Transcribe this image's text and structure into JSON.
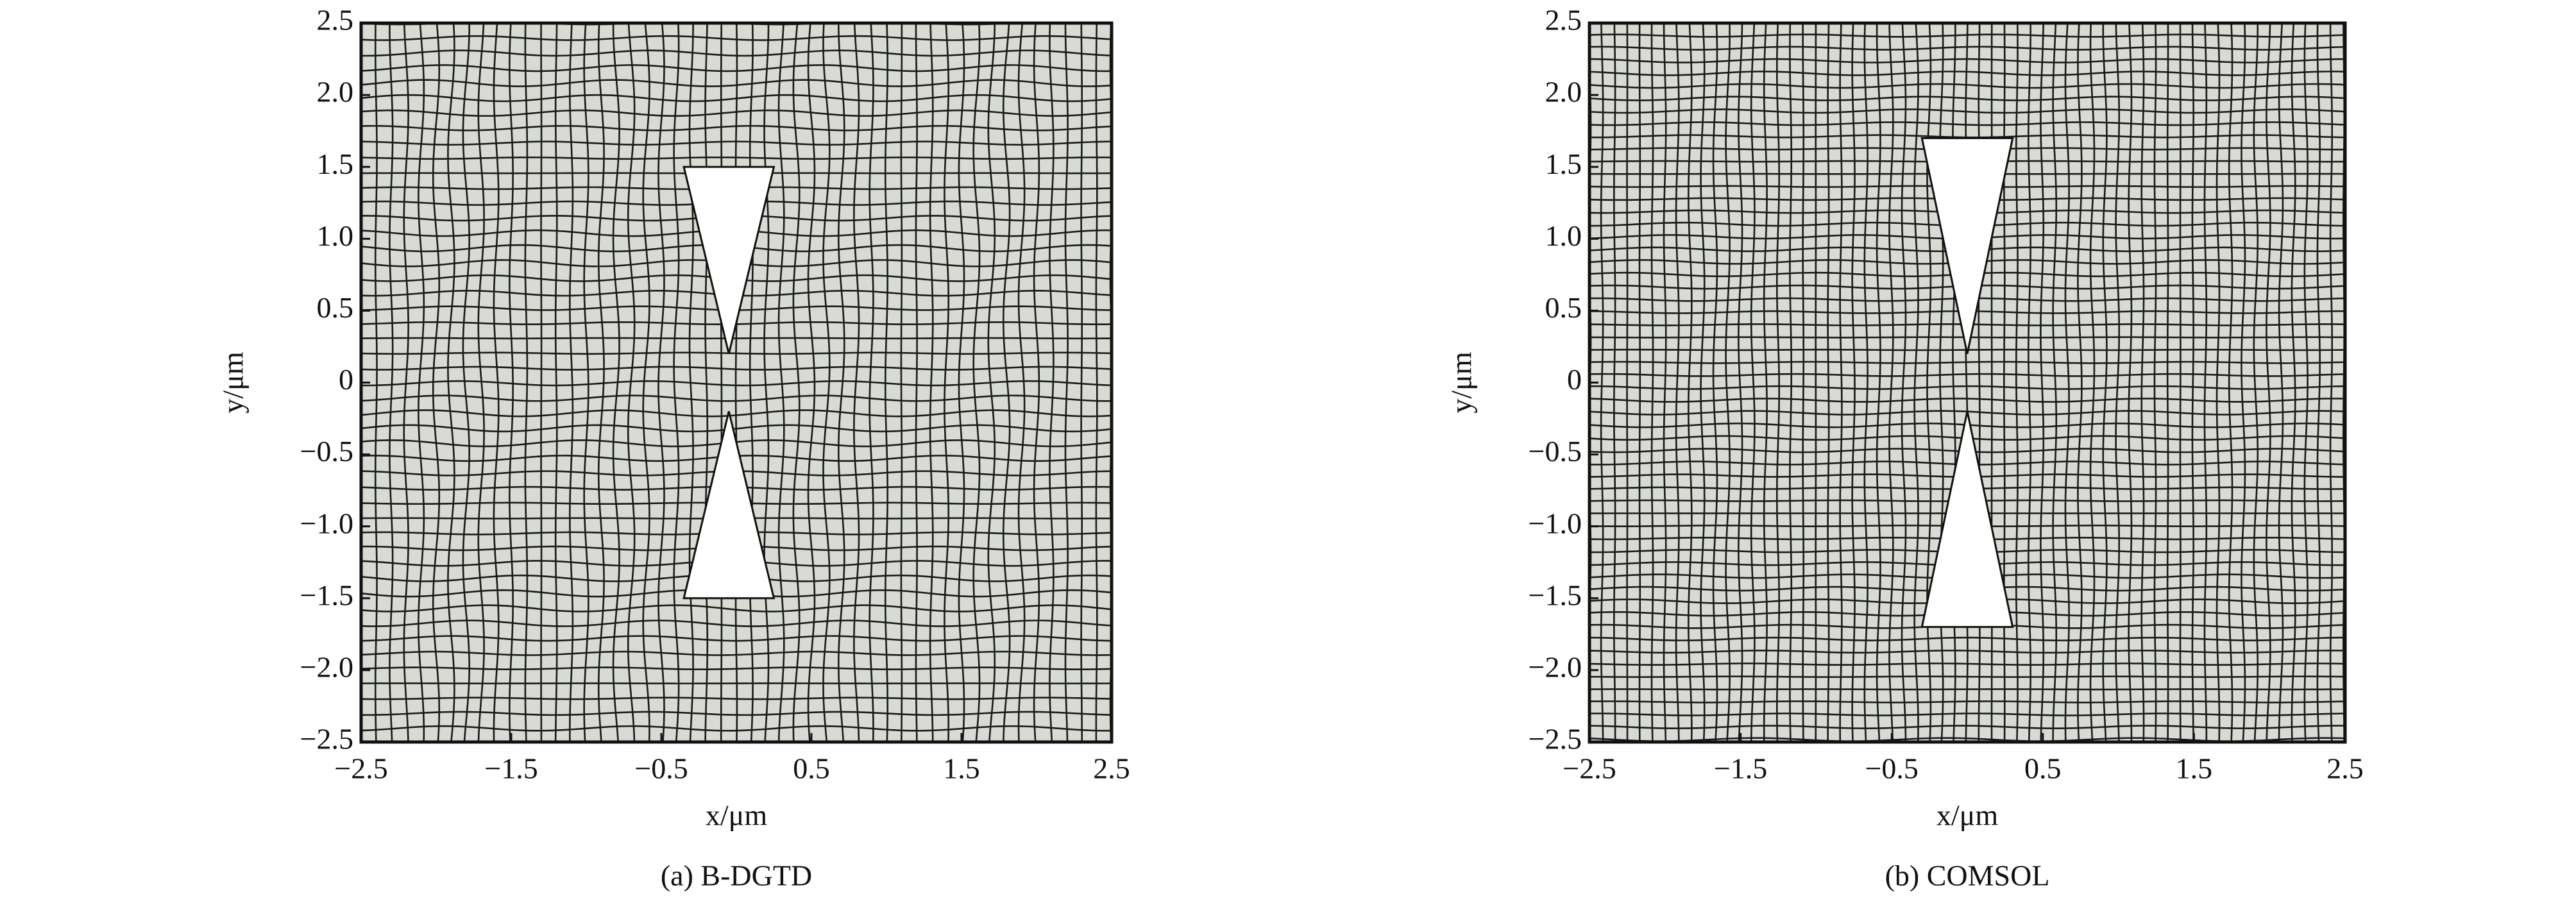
{
  "chart_data": [
    {
      "type": "mesh",
      "caption": "(a) B-DGTD",
      "xlabel": "x/μm",
      "ylabel": "y/μm",
      "xlim": [
        -2.5,
        2.5
      ],
      "ylim": [
        -2.5,
        2.5
      ],
      "xticks": [
        {
          "value": -2.5,
          "label": "−2.5"
        },
        {
          "value": -1.5,
          "label": "−1.5"
        },
        {
          "value": -0.5,
          "label": "−0.5"
        },
        0.5,
        1.5,
        2.5
      ],
      "yticks": [
        {
          "value": -2.5,
          "label": "−2.5"
        },
        {
          "value": -2.0,
          "label": "−2.0"
        },
        {
          "value": -1.5,
          "label": "−1.5"
        },
        {
          "value": -1.0,
          "label": "−1.0"
        },
        {
          "value": -0.5,
          "label": "−0.5"
        },
        0,
        0.5,
        {
          "value": 1.0,
          "label": "1.0"
        },
        1.5,
        {
          "value": 2.0,
          "label": "2.0"
        },
        2.5
      ],
      "bowtie": [
        {
          "x": [
            -0.35,
            0.25,
            -0.05
          ],
          "y": [
            1.5,
            1.5,
            0.2
          ]
        },
        {
          "x": [
            -0.05,
            0.25,
            -0.35
          ],
          "y": [
            -0.2,
            -1.5,
            -1.5
          ]
        }
      ]
    },
    {
      "type": "mesh",
      "caption": "(b) COMSOL",
      "xlabel": "x/μm",
      "ylabel": "y/μm",
      "xlim": [
        -2.5,
        2.5
      ],
      "ylim": [
        -2.5,
        2.5
      ],
      "xticks": [
        {
          "value": -2.5,
          "label": "−2.5"
        },
        {
          "value": -1.5,
          "label": "−1.5"
        },
        {
          "value": -0.5,
          "label": "−0.5"
        },
        0.5,
        1.5,
        2.5
      ],
      "yticks": [
        {
          "value": -2.5,
          "label": "−2.5"
        },
        {
          "value": -2.0,
          "label": "−2.0"
        },
        {
          "value": -1.5,
          "label": "−1.5"
        },
        {
          "value": -1.0,
          "label": "−1.0"
        },
        {
          "value": -0.5,
          "label": "−0.5"
        },
        0,
        0.5,
        {
          "value": 1.0,
          "label": "1.0"
        },
        1.5,
        {
          "value": 2.0,
          "label": "2.0"
        },
        2.5
      ],
      "bowtie": [
        {
          "x": [
            -0.3,
            0.3,
            0.0
          ],
          "y": [
            1.7,
            1.7,
            0.2
          ]
        },
        {
          "x": [
            0.0,
            0.3,
            -0.3
          ],
          "y": [
            -0.2,
            -1.7,
            -1.7
          ]
        }
      ]
    }
  ]
}
